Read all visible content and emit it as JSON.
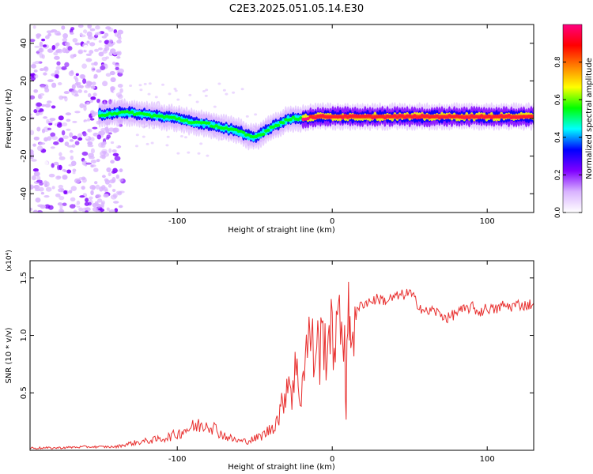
{
  "figure": {
    "title": "C2E3.2025.051.05.14.E30"
  },
  "chart_data": [
    {
      "type": "heatmap",
      "xlabel": "Height of straight line (km)",
      "ylabel": "Frequency (Hz)",
      "xlim": [
        -195,
        130
      ],
      "ylim": [
        -50,
        50
      ],
      "xticks": [
        -100,
        0,
        100
      ],
      "yticks": [
        -40,
        -20,
        0,
        20,
        40
      ],
      "grid": false,
      "colorbar": {
        "label": "Normalized spectral amplitude",
        "range": [
          0.0,
          1.0
        ],
        "ticks": [
          0.0,
          0.2,
          0.4,
          0.6,
          0.8
        ],
        "colormap": [
          "#ffffff",
          "#d9b3ff",
          "#8000ff",
          "#0000ff",
          "#00ffff",
          "#00ff00",
          "#ffff00",
          "#ff8000",
          "#ff0000",
          "#ff0080"
        ]
      },
      "ridge": {
        "x": [
          -195,
          -170,
          -150,
          -140,
          -130,
          -120,
          -110,
          -100,
          -90,
          -80,
          -70,
          -60,
          -55,
          -50,
          -45,
          -40,
          -35,
          -30,
          -25,
          -20,
          -10,
          0,
          10,
          20,
          40,
          60,
          80,
          100,
          130
        ],
        "y": [
          2,
          2,
          2,
          3,
          3,
          2,
          1,
          0,
          -2,
          -3,
          -5,
          -7,
          -9,
          -10,
          -8,
          -5,
          -3,
          -1,
          0,
          0,
          1,
          1,
          1,
          1,
          1,
          1,
          1,
          1,
          1
        ]
      }
    },
    {
      "type": "line",
      "xlabel": "Height of straight line (km)",
      "ylabel": "SNR (10 * v/v)",
      "y_multiplier": "(x10⁴)",
      "xlim": [
        -195,
        130
      ],
      "ylim": [
        0,
        1.65
      ],
      "xticks": [
        -100,
        0,
        100
      ],
      "yticks": [
        0.5,
        1.0,
        1.5
      ],
      "grid": false,
      "line_color": "#e8302f",
      "series": [
        {
          "x": [
            -195,
            -180,
            -160,
            -140,
            -130,
            -120,
            -110,
            -100,
            -95,
            -90,
            -85,
            -80,
            -75,
            -70,
            -65,
            -60,
            -55,
            -50,
            -45,
            -40,
            -35,
            -32,
            -30,
            -28,
            -26,
            -24,
            -22,
            -20,
            -18,
            -16,
            -15,
            -14,
            -12,
            -10,
            -8,
            -6,
            -4,
            -2,
            0,
            2,
            4,
            6,
            8,
            9,
            10,
            11,
            12,
            14,
            16,
            18,
            20,
            25,
            30,
            35,
            40,
            45,
            50,
            55,
            60,
            65,
            70,
            75,
            80,
            85,
            90,
            95,
            100,
            105,
            110,
            115,
            120,
            125,
            130
          ],
          "y": [
            0.02,
            0.02,
            0.03,
            0.03,
            0.06,
            0.08,
            0.1,
            0.14,
            0.18,
            0.2,
            0.22,
            0.24,
            0.18,
            0.13,
            0.1,
            0.08,
            0.08,
            0.1,
            0.13,
            0.18,
            0.28,
            0.4,
            0.55,
            0.65,
            0.5,
            0.7,
            0.6,
            0.45,
            0.85,
            0.9,
            0.95,
            1.05,
            0.8,
            0.95,
            0.85,
            1.0,
            0.9,
            1.05,
            0.95,
            1.05,
            1.0,
            1.1,
            1.05,
            0.3,
            1.2,
            1.0,
            1.15,
            1.1,
            1.2,
            1.25,
            1.28,
            1.3,
            1.32,
            1.3,
            1.33,
            1.35,
            1.37,
            1.28,
            1.2,
            1.22,
            1.18,
            1.15,
            1.2,
            1.22,
            1.25,
            1.2,
            1.24,
            1.22,
            1.26,
            1.25,
            1.27,
            1.26,
            1.28
          ]
        }
      ]
    }
  ]
}
